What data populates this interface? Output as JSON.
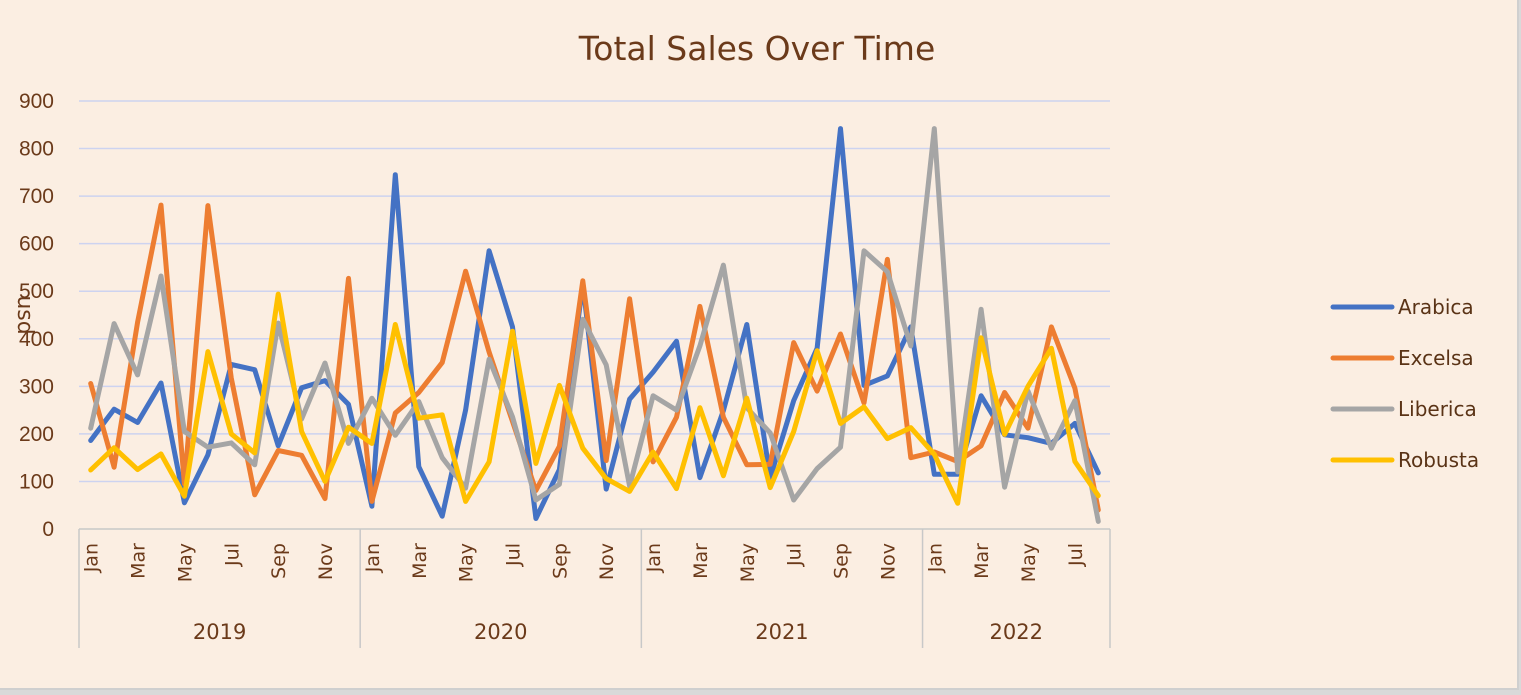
{
  "chart_data": {
    "type": "line",
    "title": "Total Sales Over Time",
    "xlabel": "",
    "ylabel": "usd",
    "ylim": [
      0,
      900
    ],
    "y_ticks": [
      0,
      100,
      200,
      300,
      400,
      500,
      600,
      700,
      800,
      900
    ],
    "grid": true,
    "legend_position": "right",
    "years": [
      "2019",
      "2020",
      "2021",
      "2022"
    ],
    "year_month_counts": [
      12,
      12,
      12,
      8
    ],
    "month_tick_labels": [
      [
        "Jan",
        "Mar",
        "May",
        "Jul",
        "Sep",
        "Nov"
      ],
      [
        "Jan",
        "Mar",
        "May",
        "Jul",
        "Sep",
        "Nov"
      ],
      [
        "Jan",
        "Mar",
        "May",
        "Jul",
        "Sep",
        "Nov"
      ],
      [
        "Jan",
        "Mar",
        "May",
        "Jul"
      ]
    ],
    "x": [
      "2019-01",
      "2019-02",
      "2019-03",
      "2019-04",
      "2019-05",
      "2019-06",
      "2019-07",
      "2019-08",
      "2019-09",
      "2019-10",
      "2019-11",
      "2019-12",
      "2020-01",
      "2020-02",
      "2020-03",
      "2020-04",
      "2020-05",
      "2020-06",
      "2020-07",
      "2020-08",
      "2020-09",
      "2020-10",
      "2020-11",
      "2020-12",
      "2021-01",
      "2021-02",
      "2021-03",
      "2021-04",
      "2021-05",
      "2021-06",
      "2021-07",
      "2021-08",
      "2021-09",
      "2021-10",
      "2021-11",
      "2021-12",
      "2022-01",
      "2022-02",
      "2022-03",
      "2022-04",
      "2022-05",
      "2022-06",
      "2022-07",
      "2022-08"
    ],
    "series": [
      {
        "name": "Arabica",
        "color": "#4472c4",
        "values": [
          186,
          252,
          224,
          307,
          55,
          156,
          346,
          335,
          175,
          297,
          312,
          262,
          48,
          745,
          131,
          27,
          250,
          585,
          425,
          22,
          125,
          517,
          84,
          273,
          330,
          395,
          108,
          249,
          430,
          108,
          270,
          380,
          842,
          302,
          322,
          425,
          115,
          115,
          280,
          198,
          192,
          180,
          222,
          118
        ]
      },
      {
        "name": "Excelsa",
        "color": "#ed7d31",
        "values": [
          306,
          130,
          435,
          681,
          95,
          680,
          317,
          72,
          165,
          155,
          64,
          527,
          58,
          244,
          287,
          350,
          542,
          372,
          226,
          81,
          174,
          522,
          144,
          484,
          141,
          235,
          468,
          235,
          135,
          136,
          392,
          290,
          410,
          265,
          567,
          150,
          162,
          142,
          175,
          287,
          212,
          425,
          296,
          40
        ]
      },
      {
        "name": "Liberica",
        "color": "#a5a5a5",
        "values": [
          212,
          432,
          324,
          532,
          205,
          172,
          181,
          135,
          433,
          231,
          349,
          180,
          275,
          197,
          268,
          150,
          86,
          357,
          236,
          61,
          94,
          441,
          345,
          90,
          280,
          250,
          385,
          555,
          255,
          202,
          61,
          127,
          172,
          585,
          541,
          385,
          842,
          120,
          462,
          88,
          290,
          170,
          270,
          16
        ]
      },
      {
        "name": "Robusta",
        "color": "#ffc000",
        "values": [
          124,
          171,
          125,
          158,
          69,
          373,
          200,
          160,
          494,
          205,
          100,
          214,
          180,
          430,
          233,
          240,
          58,
          141,
          416,
          138,
          302,
          170,
          106,
          79,
          162,
          85,
          255,
          112,
          275,
          87,
          205,
          375,
          222,
          257,
          190,
          213,
          157,
          54,
          402,
          199,
          300,
          380,
          142,
          70
        ]
      }
    ]
  }
}
